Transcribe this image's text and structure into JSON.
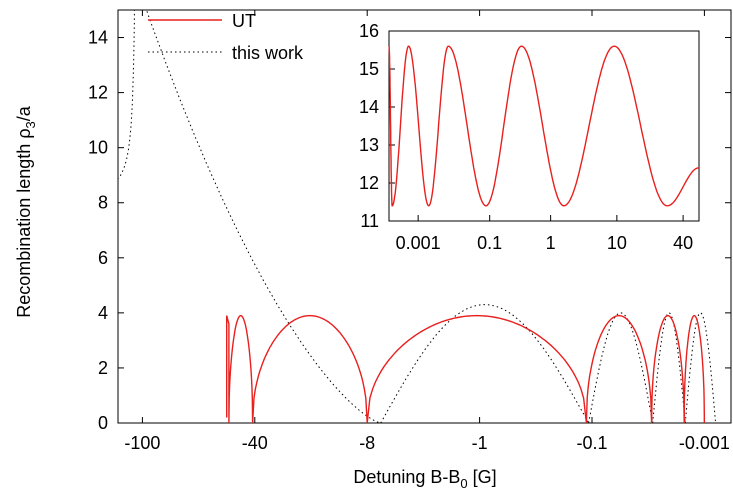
{
  "chart_data": [
    {
      "type": "line",
      "xlabel": "Detuning B-B",
      "xlabel_sub": "0",
      "xlabel_suffix": " [G]",
      "ylabel": "Recombination length ρ",
      "ylabel_sub": "3",
      "ylabel_suffix": "/a",
      "ylim": [
        0,
        15
      ],
      "yticks": [
        0,
        2,
        4,
        6,
        8,
        10,
        12,
        14
      ],
      "xticks": [
        {
          "label": "-100",
          "u": 1.0
        },
        {
          "label": "-40",
          "u": 2.0
        },
        {
          "label": "-8",
          "u": 3.0
        },
        {
          "label": "-1",
          "u": 4.0
        },
        {
          "label": "-0.1",
          "u": 5.0
        },
        {
          "label": "-0.001",
          "u": 6.0
        }
      ],
      "legend": {
        "placement": "top-left",
        "entries": [
          "UT",
          "this work"
        ]
      },
      "series": [
        {
          "name": "UT",
          "color": "#e8201e",
          "style": "solid",
          "zeros_u": [
            1.98,
            3.0,
            4.95,
            5.53,
            5.82,
            6.0
          ],
          "peak_max": 3.9,
          "onset_u": 1.75
        },
        {
          "name": "this work",
          "color": "#000000",
          "style": "dotted",
          "singularity_u": 0.95,
          "zeros_u": [
            3.12,
            4.97,
            5.54,
            5.83
          ],
          "peaks": [
            4.3,
            4.0,
            4.0,
            4.0
          ]
        }
      ]
    },
    {
      "type": "line",
      "inset": true,
      "ylim": [
        11,
        16
      ],
      "yticks": [
        11,
        12,
        13,
        14,
        15,
        16
      ],
      "xscale": "log",
      "xticks": [
        "0.001",
        "0.1",
        "1",
        "10",
        "40"
      ],
      "series": [
        {
          "name": "UT",
          "color": "#e8201e",
          "style": "solid",
          "minima_u": [
            0.06,
            0.75,
            1.83,
            3.3,
            5.25
          ],
          "maxima_u": [
            0.37,
            1.12,
            2.5,
            4.25
          ],
          "max_value": 15.6,
          "min_value": 11.4,
          "end_value": 12.4
        }
      ]
    }
  ]
}
